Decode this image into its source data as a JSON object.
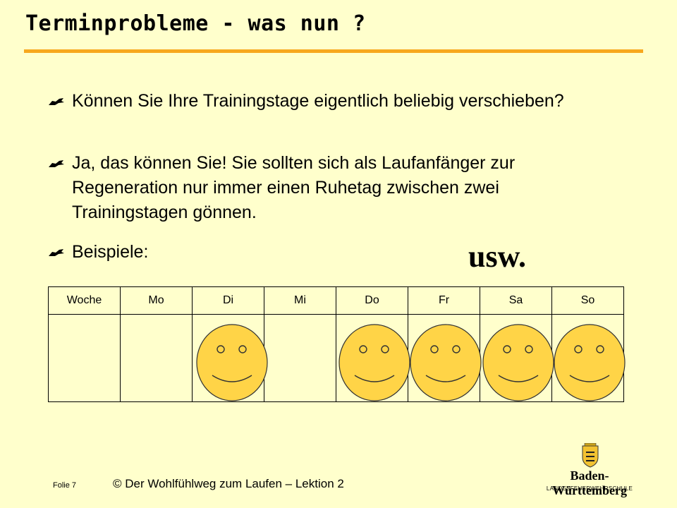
{
  "slide": {
    "title": "Terminprobleme - was nun ?",
    "bullets": [
      "Können Sie Ihre Trainingstage eigentlich beliebig verschieben?",
      "Ja, das können Sie! Sie sollten sich als Laufanfänger zur Regeneration nur immer einen Ruhetag zwischen zwei Trainingstagen gönnen.",
      "Beispiele:"
    ],
    "usw": "usw.",
    "accent_color": "#f7a81e",
    "background_color": "#ffffcc"
  },
  "table": {
    "headers": [
      "Woche",
      "Mo",
      "Di",
      "Mi",
      "Do",
      "Fr",
      "Sa",
      "So"
    ],
    "smiley_days": [
      "Di",
      "Do",
      "Fr",
      "Sa",
      "So"
    ],
    "smiley_color": "#ffd447"
  },
  "footer": {
    "folie": "Folie 7",
    "copyright": "© Der Wohlfühlweg zum Laufen – Lektion 2",
    "logo_name": "Baden-Württemberg",
    "logo_sub": "LANDESFEUERWEHRSCHULE",
    "logo_icon": "coat-of-arms-icon"
  }
}
